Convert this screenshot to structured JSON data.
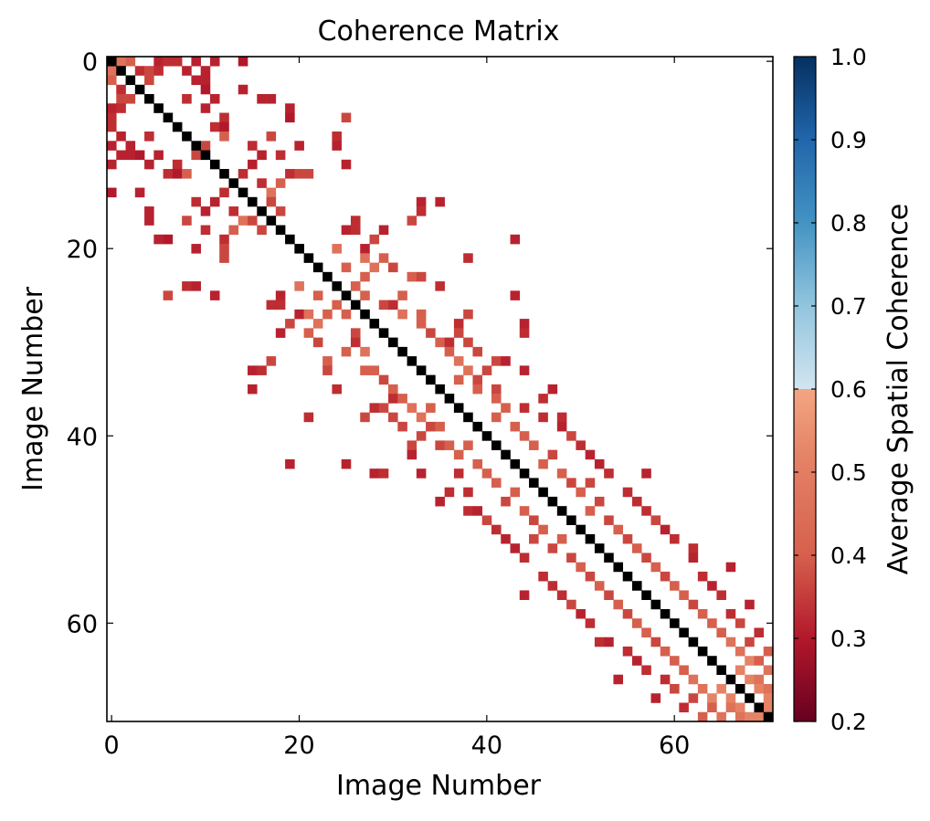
{
  "chart_data": {
    "type": "heatmap",
    "title": "Coherence Matrix",
    "xlabel": "Image Number",
    "ylabel": "Image Number",
    "xlim": [
      0,
      70
    ],
    "ylim": [
      0,
      70
    ],
    "x_ticks": [
      "0",
      "20",
      "40",
      "60"
    ],
    "y_ticks": [
      "0",
      "20",
      "40",
      "60"
    ],
    "y_inverted": true,
    "grid": false,
    "diagonal_color": "#000000",
    "masked_color": "#ffffff",
    "colorbar": {
      "label": "Average Spatial Coherence",
      "min": 0.2,
      "max": 1.0,
      "ticks": [
        "0.2",
        "0.3",
        "0.4",
        "0.5",
        "0.6",
        "0.7",
        "0.8",
        "0.9",
        "1.0"
      ],
      "colormap": "RdBu"
    },
    "note_values": "cells [row, col, coherence]; matrix is symmetric, values below 0.7 shown, diagonal drawn black",
    "cells": [
      [
        0,
        1,
        0.55
      ],
      [
        0,
        2,
        0.5
      ],
      [
        0,
        5,
        0.35
      ],
      [
        0,
        6,
        0.4
      ],
      [
        0,
        7,
        0.4
      ],
      [
        0,
        9,
        0.35
      ],
      [
        0,
        11,
        0.35
      ],
      [
        0,
        14,
        0.3
      ],
      [
        1,
        3,
        0.4
      ],
      [
        1,
        4,
        0.45
      ],
      [
        1,
        5,
        0.4
      ],
      [
        1,
        8,
        0.35
      ],
      [
        1,
        10,
        0.35
      ],
      [
        2,
        4,
        0.45
      ],
      [
        2,
        9,
        0.35
      ],
      [
        2,
        10,
        0.35
      ],
      [
        3,
        10,
        0.3
      ],
      [
        3,
        14,
        0.35
      ],
      [
        4,
        8,
        0.4
      ],
      [
        4,
        11,
        0.35
      ],
      [
        4,
        16,
        0.35
      ],
      [
        4,
        17,
        0.35
      ],
      [
        5,
        10,
        0.35
      ],
      [
        5,
        19,
        0.35
      ],
      [
        6,
        12,
        0.4
      ],
      [
        6,
        19,
        0.3
      ],
      [
        6,
        25,
        0.45
      ],
      [
        7,
        11,
        0.4
      ],
      [
        7,
        12,
        0.3
      ],
      [
        8,
        12,
        0.5
      ],
      [
        8,
        17,
        0.45
      ],
      [
        8,
        24,
        0.4
      ],
      [
        9,
        10,
        0.45
      ],
      [
        9,
        15,
        0.4
      ],
      [
        9,
        20,
        0.35
      ],
      [
        9,
        24,
        0.35
      ],
      [
        10,
        16,
        0.35
      ],
      [
        10,
        18,
        0.4
      ],
      [
        11,
        15,
        0.35
      ],
      [
        11,
        25,
        0.35
      ],
      [
        12,
        14,
        0.4
      ],
      [
        12,
        19,
        0.4
      ],
      [
        12,
        20,
        0.45
      ],
      [
        12,
        21,
        0.45
      ],
      [
        13,
        16,
        0.4
      ],
      [
        13,
        18,
        0.5
      ],
      [
        14,
        17,
        0.55
      ],
      [
        15,
        17,
        0.45
      ],
      [
        15,
        33,
        0.35
      ],
      [
        15,
        35,
        0.35
      ],
      [
        16,
        18,
        0.45
      ],
      [
        16,
        33,
        0.4
      ],
      [
        17,
        26,
        0.4
      ],
      [
        17,
        32,
        0.45
      ],
      [
        18,
        25,
        0.35
      ],
      [
        18,
        26,
        0.4
      ],
      [
        18,
        29,
        0.35
      ],
      [
        19,
        28,
        0.45
      ],
      [
        19,
        43,
        0.35
      ],
      [
        20,
        24,
        0.55
      ],
      [
        20,
        27,
        0.35
      ],
      [
        21,
        27,
        0.55
      ],
      [
        21,
        29,
        0.5
      ],
      [
        21,
        38,
        0.4
      ],
      [
        22,
        25,
        0.5
      ],
      [
        22,
        28,
        0.55
      ],
      [
        22,
        30,
        0.45
      ],
      [
        23,
        27,
        0.5
      ],
      [
        23,
        32,
        0.5
      ],
      [
        23,
        33,
        0.45
      ],
      [
        24,
        26,
        0.5
      ],
      [
        24,
        35,
        0.4
      ],
      [
        25,
        27,
        0.5
      ],
      [
        25,
        31,
        0.5
      ],
      [
        25,
        43,
        0.35
      ],
      [
        26,
        29,
        0.45
      ],
      [
        26,
        30,
        0.4
      ],
      [
        27,
        31,
        0.55
      ],
      [
        27,
        33,
        0.5
      ],
      [
        27,
        38,
        0.45
      ],
      [
        28,
        33,
        0.5
      ],
      [
        28,
        37,
        0.4
      ],
      [
        28,
        44,
        0.35
      ],
      [
        29,
        34,
        0.45
      ],
      [
        29,
        37,
        0.45
      ],
      [
        29,
        44,
        0.4
      ],
      [
        30,
        35,
        0.5
      ],
      [
        30,
        36,
        0.4
      ],
      [
        30,
        38,
        0.45
      ],
      [
        31,
        36,
        0.5
      ],
      [
        31,
        39,
        0.45
      ],
      [
        32,
        37,
        0.55
      ],
      [
        32,
        41,
        0.45
      ],
      [
        32,
        42,
        0.35
      ],
      [
        33,
        38,
        0.55
      ],
      [
        33,
        40,
        0.45
      ],
      [
        33,
        44,
        0.35
      ],
      [
        34,
        37,
        0.5
      ],
      [
        34,
        39,
        0.45
      ],
      [
        35,
        39,
        0.5
      ],
      [
        35,
        41,
        0.45
      ],
      [
        35,
        47,
        0.35
      ],
      [
        36,
        41,
        0.5
      ],
      [
        36,
        46,
        0.4
      ],
      [
        37,
        42,
        0.5
      ],
      [
        37,
        44,
        0.4
      ],
      [
        38,
        41,
        0.5
      ],
      [
        38,
        46,
        0.4
      ],
      [
        38,
        48,
        0.4
      ],
      [
        39,
        43,
        0.5
      ],
      [
        39,
        48,
        0.35
      ],
      [
        40,
        44,
        0.5
      ],
      [
        40,
        49,
        0.45
      ],
      [
        41,
        45,
        0.5
      ],
      [
        41,
        50,
        0.4
      ],
      [
        42,
        47,
        0.45
      ],
      [
        42,
        51,
        0.35
      ],
      [
        43,
        46,
        0.5
      ],
      [
        43,
        52,
        0.35
      ],
      [
        44,
        48,
        0.5
      ],
      [
        44,
        53,
        0.4
      ],
      [
        44,
        57,
        0.35
      ],
      [
        45,
        49,
        0.45
      ],
      [
        45,
        51,
        0.45
      ],
      [
        46,
        50,
        0.5
      ],
      [
        46,
        55,
        0.4
      ],
      [
        47,
        52,
        0.45
      ],
      [
        47,
        56,
        0.4
      ],
      [
        48,
        51,
        0.5
      ],
      [
        48,
        57,
        0.4
      ],
      [
        49,
        53,
        0.45
      ],
      [
        49,
        58,
        0.45
      ],
      [
        50,
        54,
        0.5
      ],
      [
        50,
        59,
        0.35
      ],
      [
        51,
        55,
        0.45
      ],
      [
        51,
        60,
        0.4
      ],
      [
        52,
        56,
        0.5
      ],
      [
        52,
        62,
        0.4
      ],
      [
        53,
        57,
        0.45
      ],
      [
        53,
        62,
        0.35
      ],
      [
        54,
        58,
        0.5
      ],
      [
        54,
        66,
        0.35
      ],
      [
        55,
        59,
        0.45
      ],
      [
        55,
        63,
        0.4
      ],
      [
        56,
        60,
        0.5
      ],
      [
        56,
        64,
        0.35
      ],
      [
        57,
        61,
        0.5
      ],
      [
        57,
        65,
        0.4
      ],
      [
        58,
        62,
        0.45
      ],
      [
        58,
        68,
        0.35
      ],
      [
        59,
        63,
        0.5
      ],
      [
        59,
        66,
        0.4
      ],
      [
        60,
        64,
        0.5
      ],
      [
        60,
        67,
        0.45
      ],
      [
        61,
        65,
        0.5
      ],
      [
        61,
        69,
        0.4
      ],
      [
        62,
        66,
        0.55
      ],
      [
        62,
        68,
        0.45
      ],
      [
        63,
        67,
        0.55
      ],
      [
        63,
        70,
        0.5
      ],
      [
        64,
        68,
        0.6
      ],
      [
        64,
        69,
        0.5
      ],
      [
        65,
        67,
        0.6
      ],
      [
        65,
        70,
        0.55
      ],
      [
        66,
        68,
        0.6
      ],
      [
        66,
        69,
        0.55
      ],
      [
        67,
        69,
        0.6
      ],
      [
        67,
        70,
        0.55
      ],
      [
        68,
        70,
        0.6
      ],
      [
        69,
        70,
        0.6
      ]
    ]
  }
}
